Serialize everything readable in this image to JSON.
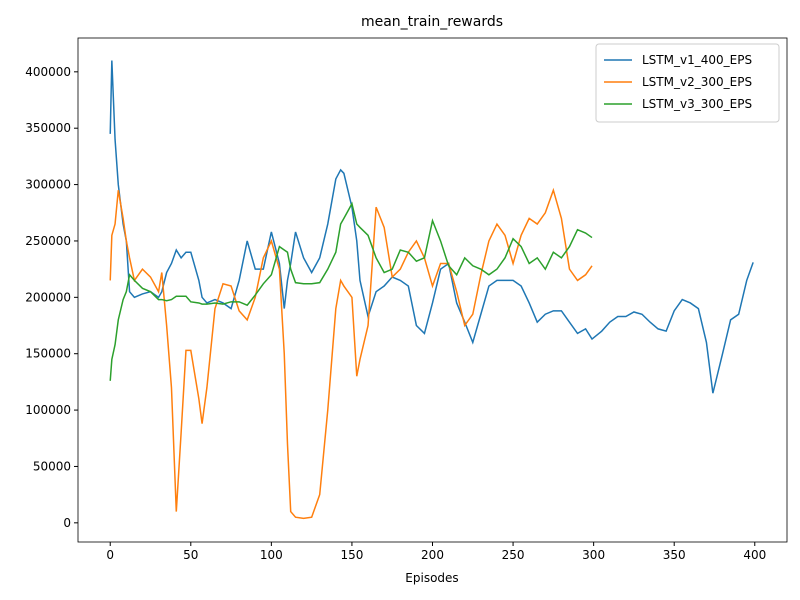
{
  "chart_data": {
    "type": "line",
    "title": "mean_train_rewards",
    "x_label": "Episodes",
    "x": [
      0,
      1,
      3,
      5,
      8,
      10,
      12,
      15,
      20,
      25,
      30,
      32,
      35,
      38,
      41,
      44,
      47,
      50,
      55,
      57,
      60,
      65,
      70,
      75,
      80,
      85,
      90,
      95,
      100,
      105,
      108,
      110,
      112,
      115,
      120,
      125,
      130,
      135,
      140,
      143,
      145,
      150,
      153,
      155,
      160,
      165,
      170,
      175,
      180,
      185,
      190,
      195,
      200,
      205,
      210,
      215,
      220,
      225,
      230,
      235,
      240,
      245,
      250,
      255,
      260,
      265,
      270,
      275,
      280,
      285,
      290,
      295,
      299,
      305,
      310,
      315,
      320,
      325,
      330,
      335,
      340,
      345,
      350,
      355,
      360,
      365,
      370,
      374,
      380,
      385,
      390,
      395,
      399
    ],
    "series": [
      {
        "name": "LSTM_v1_400_EPS",
        "color": "#1f77b4",
        "values": [
          345000,
          410000,
          340000,
          300000,
          265000,
          250000,
          205000,
          200000,
          203000,
          205000,
          200000,
          205000,
          222000,
          230000,
          242000,
          235000,
          240000,
          240000,
          215000,
          200000,
          195000,
          198000,
          195000,
          190000,
          215000,
          250000,
          225000,
          225000,
          258000,
          230000,
          190000,
          215000,
          230000,
          258000,
          235000,
          222000,
          235000,
          265000,
          305000,
          313000,
          310000,
          280000,
          250000,
          215000,
          183000,
          205000,
          210000,
          218000,
          215000,
          210000,
          175000,
          168000,
          195000,
          225000,
          230000,
          195000,
          178000,
          160000,
          185000,
          210000,
          215000,
          215000,
          215000,
          210000,
          195000,
          178000,
          185000,
          188000,
          188000,
          178000,
          168000,
          172000,
          163000,
          170000,
          178000,
          183000,
          183000,
          187000,
          185000,
          178000,
          172000,
          170000,
          188000,
          198000,
          195000,
          190000,
          160000,
          115000,
          150000,
          180000,
          185000,
          215000,
          231000
        ]
      },
      {
        "name": "LSTM_v2_300_EPS",
        "color": "#ff7f0e",
        "values": [
          215000,
          255000,
          265000,
          295000,
          270000,
          250000,
          235000,
          215000,
          225000,
          218000,
          205000,
          222000,
          175000,
          120000,
          10000,
          80000,
          153000,
          153000,
          110000,
          88000,
          120000,
          190000,
          212000,
          210000,
          188000,
          180000,
          200000,
          235000,
          250000,
          225000,
          150000,
          70000,
          10000,
          5000,
          4000,
          5000,
          25000,
          100000,
          190000,
          215000,
          210000,
          200000,
          130000,
          145000,
          175000,
          280000,
          262000,
          218000,
          225000,
          240000,
          250000,
          235000,
          210000,
          230000,
          230000,
          205000,
          175000,
          185000,
          220000,
          250000,
          265000,
          255000,
          230000,
          255000,
          270000,
          265000,
          275000,
          295000,
          270000,
          225000,
          215000,
          220000,
          228000,
          null,
          null,
          null,
          null,
          null,
          null,
          null,
          null,
          null,
          null,
          null,
          null,
          null,
          null,
          null,
          null,
          null,
          null,
          null,
          null
        ]
      },
      {
        "name": "LSTM_v3_300_EPS",
        "color": "#2ca02c",
        "values": [
          126000,
          145000,
          158000,
          180000,
          198000,
          205000,
          220000,
          215000,
          208000,
          205000,
          198000,
          198000,
          197000,
          198000,
          201000,
          201000,
          201000,
          196000,
          195000,
          194000,
          194000,
          195000,
          194000,
          196000,
          196000,
          193000,
          202000,
          212000,
          220000,
          245000,
          242000,
          240000,
          225000,
          213000,
          212000,
          212000,
          213000,
          225000,
          240000,
          265000,
          270000,
          283000,
          265000,
          262000,
          255000,
          235000,
          222000,
          225000,
          242000,
          240000,
          232000,
          235000,
          268000,
          250000,
          228000,
          220000,
          235000,
          228000,
          225000,
          220000,
          225000,
          235000,
          252000,
          245000,
          230000,
          235000,
          225000,
          240000,
          235000,
          245000,
          260000,
          257000,
          253000,
          null,
          null,
          null,
          null,
          null,
          null,
          null,
          null,
          null,
          null,
          null,
          null,
          null,
          null,
          null,
          null,
          null,
          null,
          null,
          null
        ]
      }
    ],
    "xlim": [
      -20,
      420
    ],
    "ylim": [
      -17000,
      430000
    ],
    "xticks": [
      0,
      50,
      100,
      150,
      200,
      250,
      300,
      350,
      400
    ],
    "yticks": [
      0,
      50000,
      100000,
      150000,
      200000,
      250000,
      300000,
      350000,
      400000
    ],
    "legend": "upper right"
  }
}
